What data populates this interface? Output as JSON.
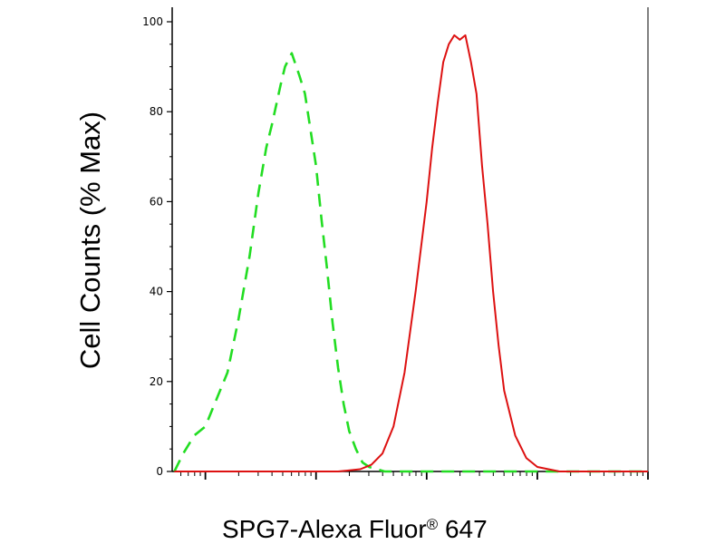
{
  "chart_data": {
    "type": "line",
    "xlabel_main": "SPG7-Alexa Fluor",
    "xlabel_reg": "®",
    "xlabel_tail": " 647",
    "ylabel": "Cell Counts (% Max)",
    "ylim": [
      0,
      100
    ],
    "y_ticks": [
      "0",
      "20",
      "40",
      "60",
      "80",
      "100"
    ],
    "x_scale": "log",
    "x_log_range": [
      0.7,
      5
    ],
    "grid": false,
    "legend": "none",
    "series": [
      {
        "color": "#22dd22",
        "style": "dashed",
        "x": [
          0.72,
          0.8,
          0.9,
          1.0,
          1.1,
          1.2,
          1.3,
          1.4,
          1.48,
          1.55,
          1.6,
          1.68,
          1.72,
          1.78,
          1.85,
          1.9,
          1.95,
          2.0,
          2.05,
          2.1,
          2.15,
          2.2,
          2.25,
          2.3,
          2.36,
          2.42,
          2.48,
          2.55,
          2.62,
          2.7,
          2.8,
          2.9,
          3.0,
          3.2,
          3.5,
          3.8,
          4.2,
          4.6,
          5.0
        ],
        "y": [
          0,
          4,
          8,
          10,
          16,
          22,
          34,
          48,
          62,
          72,
          77,
          86,
          90,
          93,
          88,
          84,
          76,
          68,
          56,
          45,
          33,
          23,
          15,
          9,
          5,
          2,
          1,
          0.5,
          0,
          0,
          0,
          0,
          0,
          0,
          0,
          0,
          0,
          0,
          0
        ]
      },
      {
        "color": "#dd1111",
        "style": "solid",
        "x": [
          0.72,
          1.0,
          1.3,
          1.6,
          1.9,
          2.2,
          2.4,
          2.5,
          2.6,
          2.7,
          2.8,
          2.9,
          3.0,
          3.05,
          3.1,
          3.15,
          3.2,
          3.25,
          3.3,
          3.35,
          3.4,
          3.45,
          3.5,
          3.55,
          3.6,
          3.65,
          3.7,
          3.8,
          3.9,
          4.0,
          4.2,
          4.5,
          5.0
        ],
        "y": [
          0,
          0,
          0,
          0,
          0,
          0,
          0.5,
          1.5,
          4,
          10,
          22,
          40,
          60,
          72,
          82,
          91,
          95,
          97,
          96,
          97,
          91,
          84,
          68,
          55,
          40,
          28,
          18,
          8,
          3,
          1,
          0,
          0,
          0
        ]
      }
    ]
  }
}
